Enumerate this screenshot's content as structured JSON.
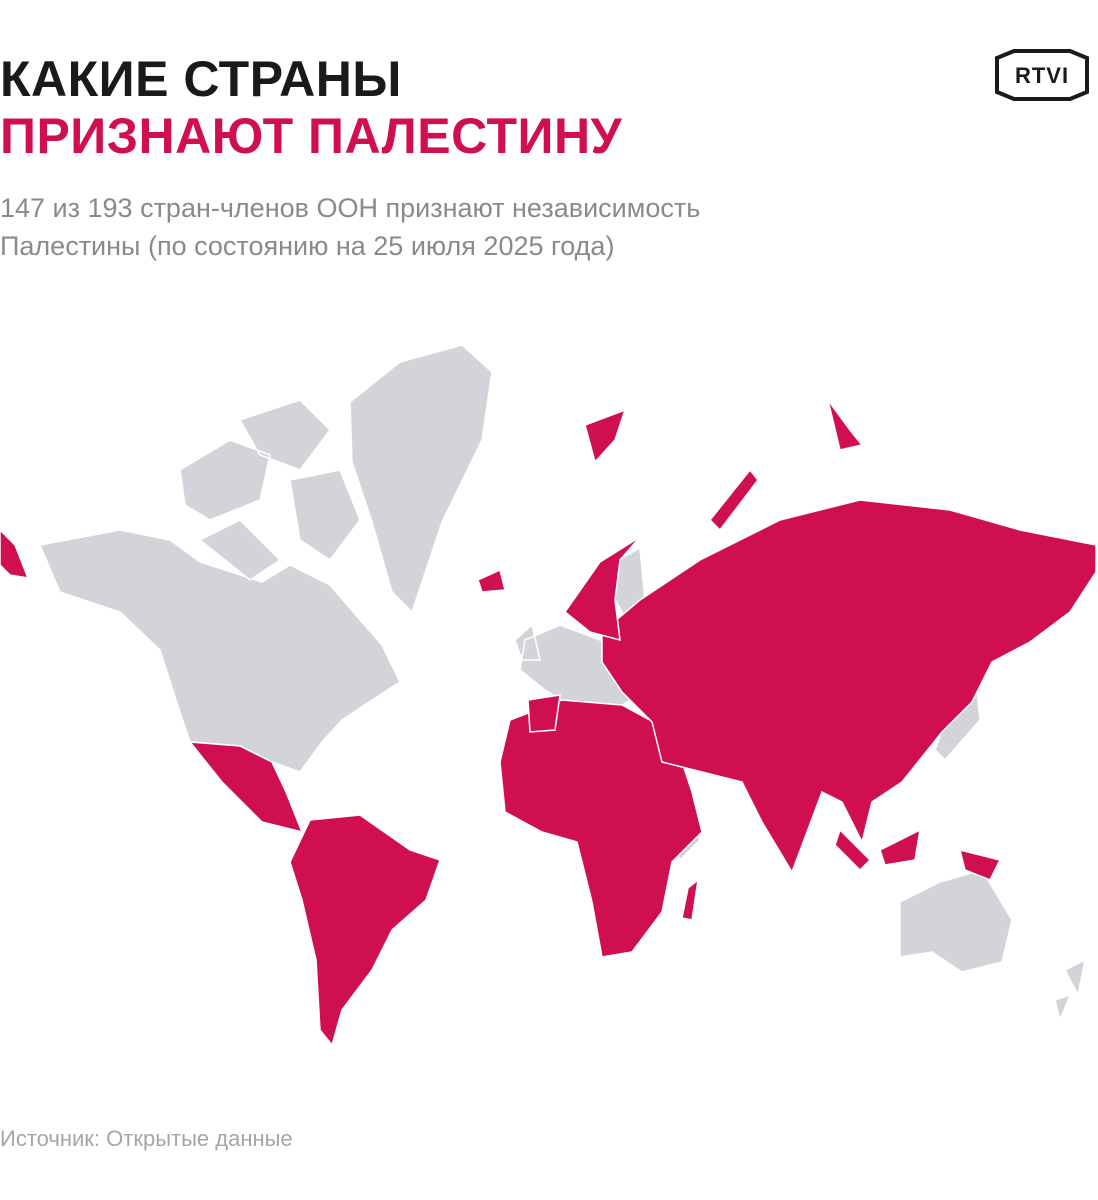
{
  "header": {
    "title_line1": "КАКИЕ СТРАНЫ",
    "title_line2": "ПРИЗНАЮТ ПАЛЕСТИНУ",
    "subtitle_line1": "147 из 193 стран-членов ООН признают независимость",
    "subtitle_line2": "Палестины (по состоянию на 25 июля 2025 года)",
    "logo": "RTVI"
  },
  "footer": {
    "source": "Источник: Открытые данные"
  }
}
